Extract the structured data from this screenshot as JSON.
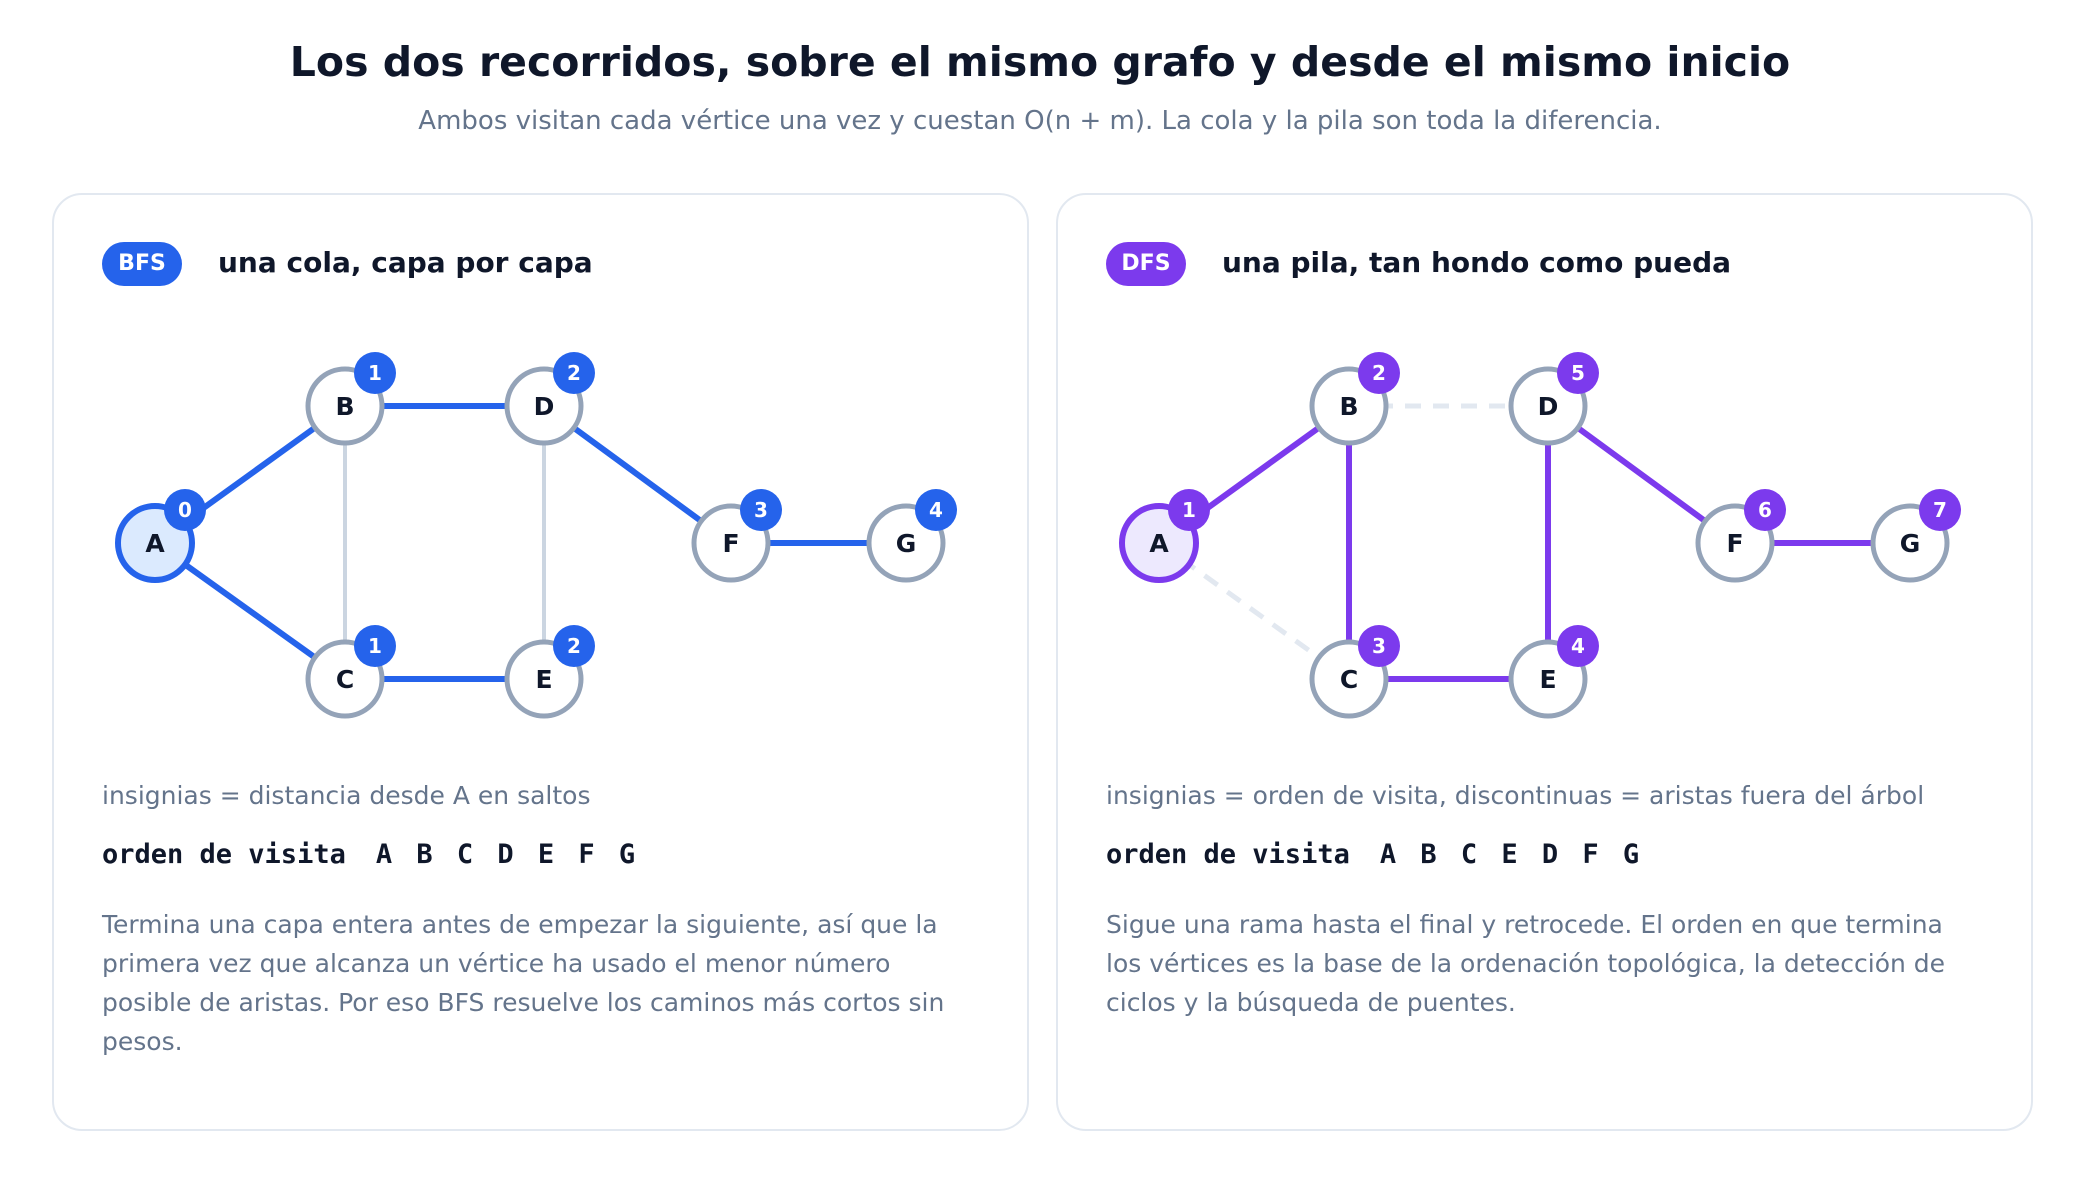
{
  "title": "Los dos recorridos, sobre el mismo grafo y desde el mismo inicio",
  "subtitle": "Ambos visitan cada vértice una vez y cuestan O(n + m). La cola y la pila son toda la diferencia.",
  "colors": {
    "bfs": "#2563eb",
    "bfs_start_fill": "#dbeafe",
    "dfs": "#7c3aed",
    "dfs_start_fill": "#ede9fe",
    "node_border": "#94a3b8",
    "non_tree_edge_bfs": "#cbd5e1",
    "non_tree_edge_dfs": "#e2e8f0"
  },
  "nodes": [
    "A",
    "B",
    "C",
    "D",
    "E",
    "F",
    "G"
  ],
  "panels": {
    "bfs": {
      "tag": "BFS",
      "heading": "una cola, capa por capa",
      "caption": "insignias = distancia desde A en saltos",
      "order_label": "orden de visita",
      "order_sequence": "A B C D E F G",
      "description": "Termina una capa entera antes de empezar la siguiente, así que la primera vez que alcanza un vértice ha usado el menor número posible de aristas. Por eso BFS resuelve los caminos más cortos sin pesos.",
      "badges": {
        "A": "0",
        "B": "1",
        "C": "1",
        "D": "2",
        "E": "2",
        "F": "3",
        "G": "4"
      },
      "edges": [
        {
          "from": "A",
          "to": "B",
          "style": "tree"
        },
        {
          "from": "A",
          "to": "C",
          "style": "tree"
        },
        {
          "from": "B",
          "to": "D",
          "style": "tree"
        },
        {
          "from": "C",
          "to": "E",
          "style": "tree"
        },
        {
          "from": "D",
          "to": "F",
          "style": "tree"
        },
        {
          "from": "F",
          "to": "G",
          "style": "tree"
        },
        {
          "from": "B",
          "to": "C",
          "style": "other"
        },
        {
          "from": "D",
          "to": "E",
          "style": "other"
        }
      ]
    },
    "dfs": {
      "tag": "DFS",
      "heading": "una pila, tan hondo como pueda",
      "caption": "insignias = orden de visita, discontinuas = aristas fuera del árbol",
      "order_label": "orden de visita",
      "order_sequence": "A B C E D F G",
      "description": "Sigue una rama hasta el final y retrocede. El orden en que termina los vértices es la base de la ordenación topológica, la detección de ciclos y la búsqueda de puentes.",
      "badges": {
        "A": "1",
        "B": "2",
        "C": "3",
        "D": "5",
        "E": "4",
        "F": "6",
        "G": "7"
      },
      "edges": [
        {
          "from": "A",
          "to": "B",
          "style": "tree"
        },
        {
          "from": "B",
          "to": "C",
          "style": "tree"
        },
        {
          "from": "C",
          "to": "E",
          "style": "tree"
        },
        {
          "from": "E",
          "to": "D",
          "style": "tree"
        },
        {
          "from": "D",
          "to": "F",
          "style": "tree"
        },
        {
          "from": "F",
          "to": "G",
          "style": "tree"
        },
        {
          "from": "A",
          "to": "C",
          "style": "dashed"
        },
        {
          "from": "B",
          "to": "D",
          "style": "dashed"
        }
      ]
    }
  }
}
